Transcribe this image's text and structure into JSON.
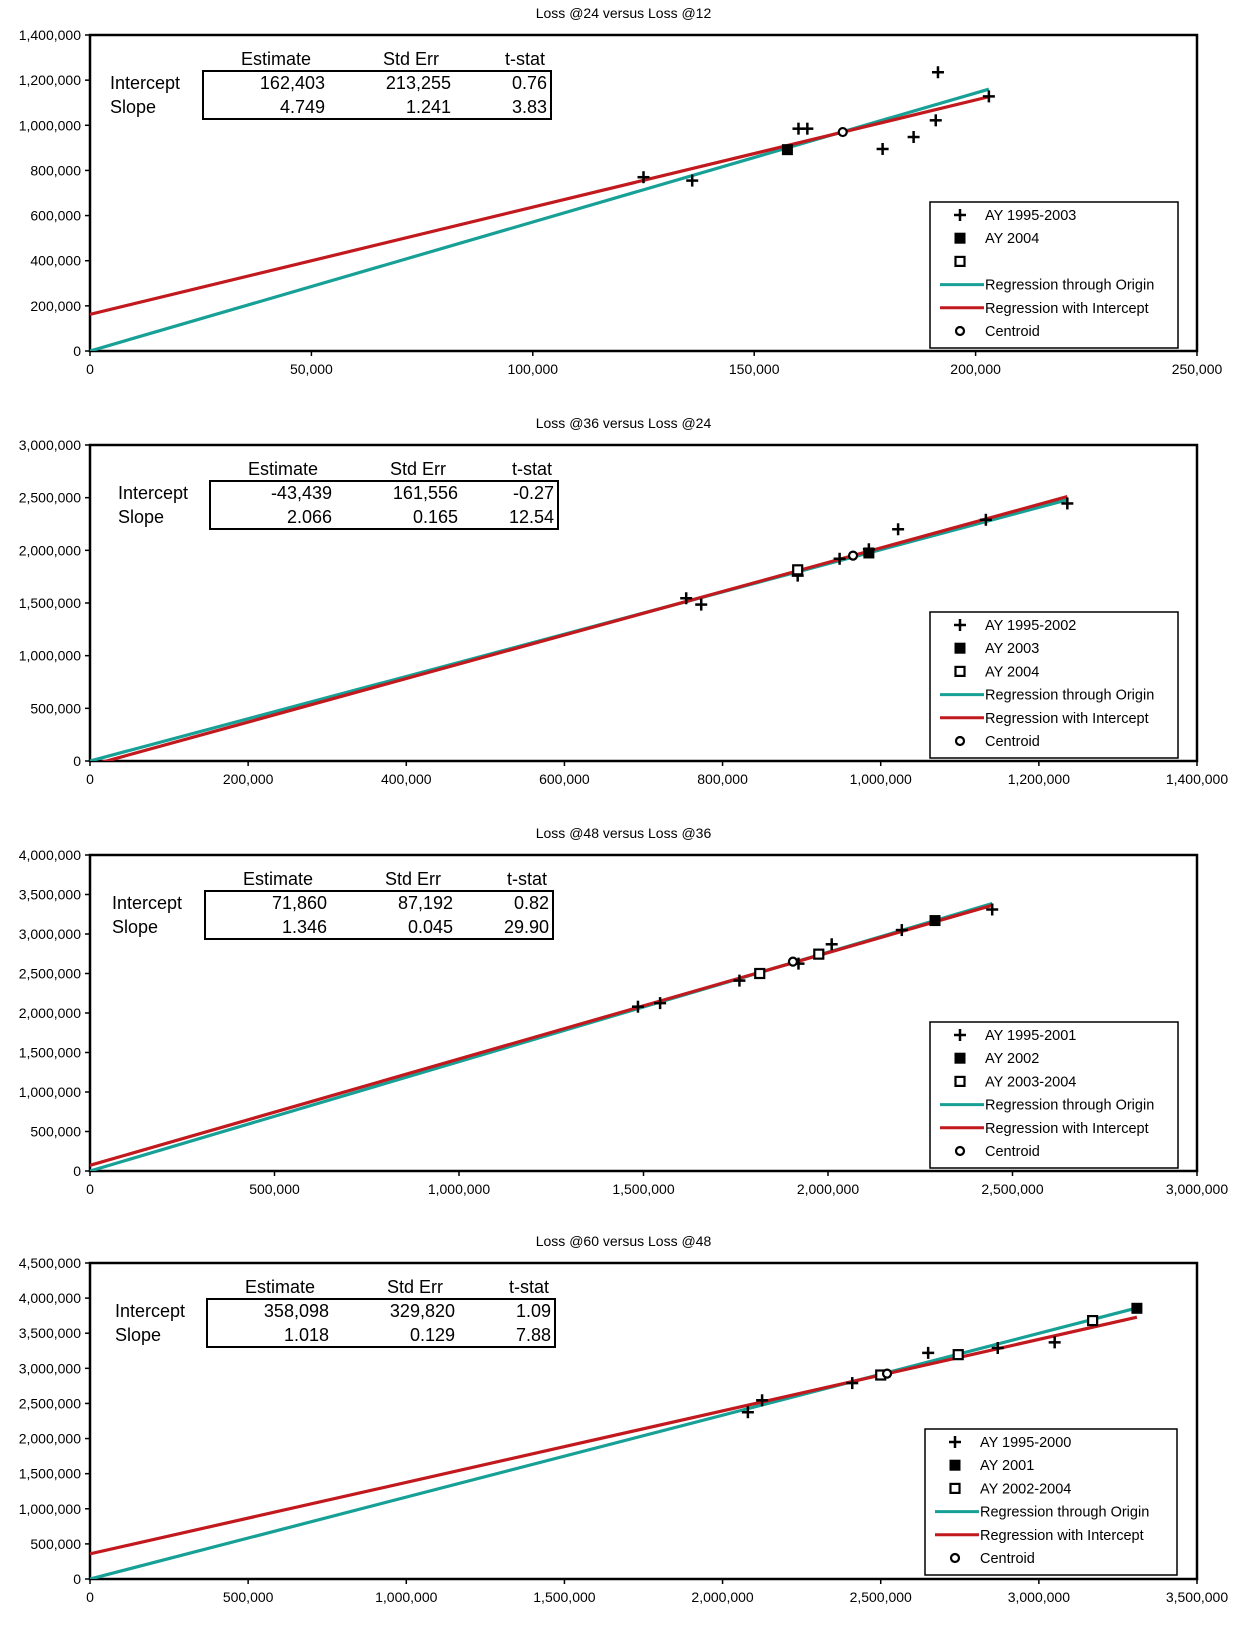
{
  "colors": {
    "origin_line": "#17a096",
    "intercept_line": "#c1191d",
    "ink": "#000000"
  },
  "chart_data": [
    {
      "type": "scatter",
      "title": "Loss @24 versus Loss @12",
      "xlabel": "",
      "ylabel": "",
      "xlim": [
        0,
        250000
      ],
      "ylim": [
        0,
        1400000
      ],
      "xticks": [
        0,
        50000,
        100000,
        150000,
        200000,
        250000
      ],
      "xtick_labels": [
        "0",
        "50,000",
        "100,000",
        "150,000",
        "200,000",
        "250,000"
      ],
      "yticks": [
        0,
        200000,
        400000,
        600000,
        800000,
        1000000,
        1200000,
        1400000
      ],
      "ytick_labels": [
        "0",
        "200,000",
        "400,000",
        "600,000",
        "800,000",
        "1,000,000",
        "1,200,000",
        "1,400,000"
      ],
      "table": {
        "headers": [
          "Estimate",
          "Std Err",
          "t-stat"
        ],
        "rows": [
          {
            "label": "Intercept",
            "values": [
              "162,403",
              "213,255",
              "0.76"
            ]
          },
          {
            "label": "Slope",
            "values": [
              "4.749",
              "1.241",
              "3.83"
            ]
          }
        ]
      },
      "legend": {
        "position": "bottom-right",
        "entries": [
          {
            "marker": "plus",
            "label": "AY 1995-2003"
          },
          {
            "marker": "filled-square",
            "label": "AY 2004"
          },
          {
            "marker": "open-square",
            "label": ""
          },
          {
            "marker": "teal-line",
            "label": "Regression through Origin"
          },
          {
            "marker": "red-line",
            "label": "Regression with Intercept"
          },
          {
            "marker": "circle",
            "label": "Centroid"
          }
        ]
      },
      "series": [
        {
          "name": "AY 1995-2003",
          "marker": "plus",
          "points": [
            [
              125000,
              770000
            ],
            [
              136000,
              755000
            ],
            [
              160000,
              985000
            ],
            [
              162000,
              985000
            ],
            [
              179000,
              895000
            ],
            [
              186000,
              948000
            ],
            [
              191000,
              1022000
            ],
            [
              191500,
              1235000
            ],
            [
              203000,
              1128000
            ]
          ]
        },
        {
          "name": "AY 2004",
          "marker": "filled-square",
          "points": [
            [
              157500,
              892000
            ]
          ]
        },
        {
          "name": "Centroid",
          "marker": "circle",
          "points": [
            [
              170000,
              970000
            ]
          ]
        }
      ],
      "lines": [
        {
          "name": "Regression through Origin",
          "color_key": "origin_line",
          "points": [
            [
              0,
              0
            ],
            [
              203000,
              1160000
            ]
          ]
        },
        {
          "name": "Regression with Intercept",
          "color_key": "intercept_line",
          "points": [
            [
              0,
              162403
            ],
            [
              203000,
              1126450
            ]
          ]
        }
      ]
    },
    {
      "type": "scatter",
      "title": "Loss @36 versus Loss @24",
      "xlabel": "",
      "ylabel": "",
      "xlim": [
        0,
        1400000
      ],
      "ylim": [
        0,
        3000000
      ],
      "xticks": [
        0,
        200000,
        400000,
        600000,
        800000,
        1000000,
        1200000,
        1400000
      ],
      "xtick_labels": [
        "0",
        "200,000",
        "400,000",
        "600,000",
        "800,000",
        "1,000,000",
        "1,200,000",
        "1,400,000"
      ],
      "yticks": [
        0,
        500000,
        1000000,
        1500000,
        2000000,
        2500000,
        3000000
      ],
      "ytick_labels": [
        "0",
        "500,000",
        "1,000,000",
        "1,500,000",
        "2,000,000",
        "2,500,000",
        "3,000,000"
      ],
      "table": {
        "headers": [
          "Estimate",
          "Std Err",
          "t-stat"
        ],
        "rows": [
          {
            "label": "Intercept",
            "values": [
              "-43,439",
              "161,556",
              "-0.27"
            ]
          },
          {
            "label": "Slope",
            "values": [
              "2.066",
              "0.165",
              "12.54"
            ]
          }
        ]
      },
      "legend": {
        "position": "bottom-right",
        "entries": [
          {
            "marker": "plus",
            "label": "AY 1995-2002"
          },
          {
            "marker": "filled-square",
            "label": "AY 2003"
          },
          {
            "marker": "open-square",
            "label": "AY 2004"
          },
          {
            "marker": "teal-line",
            "label": "Regression through Origin"
          },
          {
            "marker": "red-line",
            "label": "Regression with Intercept"
          },
          {
            "marker": "circle",
            "label": "Centroid"
          }
        ]
      },
      "series": [
        {
          "name": "AY 1995-2002",
          "marker": "plus",
          "points": [
            [
              754000,
              1545000
            ],
            [
              773000,
              1485000
            ],
            [
              895000,
              1760000
            ],
            [
              948000,
              1920000
            ],
            [
              985000,
              2010000
            ],
            [
              1022000,
              2200000
            ],
            [
              1133000,
              2290000
            ],
            [
              1236000,
              2445000
            ]
          ]
        },
        {
          "name": "AY 2003",
          "marker": "filled-square",
          "points": [
            [
              985000,
              1975000
            ]
          ]
        },
        {
          "name": "AY 2004",
          "marker": "open-square",
          "points": [
            [
              895000,
              1815000
            ]
          ]
        },
        {
          "name": "Centroid",
          "marker": "circle",
          "points": [
            [
              965000,
              1950000
            ]
          ]
        }
      ],
      "lines": [
        {
          "name": "Regression through Origin",
          "color_key": "origin_line",
          "points": [
            [
              0,
              0
            ],
            [
              1236000,
              2480000
            ]
          ]
        },
        {
          "name": "Regression with Intercept",
          "color_key": "intercept_line",
          "points": [
            [
              0,
              -43439
            ],
            [
              1236000,
              2510137
            ]
          ]
        }
      ]
    },
    {
      "type": "scatter",
      "title": "Loss @48 versus Loss @36",
      "xlabel": "",
      "ylabel": "",
      "xlim": [
        0,
        3000000
      ],
      "ylim": [
        0,
        4000000
      ],
      "xticks": [
        0,
        500000,
        1000000,
        1500000,
        2000000,
        2500000,
        3000000
      ],
      "xtick_labels": [
        "0",
        "500,000",
        "1,000,000",
        "1,500,000",
        "2,000,000",
        "2,500,000",
        "3,000,000"
      ],
      "yticks": [
        0,
        500000,
        1000000,
        1500000,
        2000000,
        2500000,
        3000000,
        3500000,
        4000000
      ],
      "ytick_labels": [
        "0",
        "500,000",
        "1,000,000",
        "1,500,000",
        "2,000,000",
        "2,500,000",
        "3,000,000",
        "3,500,000",
        "4,000,000"
      ],
      "table": {
        "headers": [
          "Estimate",
          "Std Err",
          "t-stat"
        ],
        "rows": [
          {
            "label": "Intercept",
            "values": [
              "71,860",
              "87,192",
              "0.82"
            ]
          },
          {
            "label": "Slope",
            "values": [
              "1.346",
              "0.045",
              "29.90"
            ]
          }
        ]
      },
      "legend": {
        "position": "bottom-right",
        "entries": [
          {
            "marker": "plus",
            "label": "AY 1995-2001"
          },
          {
            "marker": "filled-square",
            "label": "AY 2002"
          },
          {
            "marker": "open-square",
            "label": "AY 2003-2004"
          },
          {
            "marker": "teal-line",
            "label": "Regression through Origin"
          },
          {
            "marker": "red-line",
            "label": "Regression with Intercept"
          },
          {
            "marker": "circle",
            "label": "Centroid"
          }
        ]
      },
      "series": [
        {
          "name": "AY 1995-2001",
          "marker": "plus",
          "points": [
            [
              1485000,
              2080000
            ],
            [
              1545000,
              2125000
            ],
            [
              1760000,
              2410000
            ],
            [
              1920000,
              2625000
            ],
            [
              2010000,
              2870000
            ],
            [
              2200000,
              3050000
            ],
            [
              2445000,
              3310000
            ]
          ]
        },
        {
          "name": "AY 2002",
          "marker": "filled-square",
          "points": [
            [
              2290000,
              3170000
            ]
          ]
        },
        {
          "name": "AY 2003-2004",
          "marker": "open-square",
          "points": [
            [
              1815000,
              2500000
            ],
            [
              1975000,
              2745000
            ]
          ]
        },
        {
          "name": "Centroid",
          "marker": "circle",
          "points": [
            [
              1905000,
              2650000
            ]
          ]
        }
      ],
      "lines": [
        {
          "name": "Regression through Origin",
          "color_key": "origin_line",
          "points": [
            [
              0,
              0
            ],
            [
              2445000,
              3385000
            ]
          ]
        },
        {
          "name": "Regression with Intercept",
          "color_key": "intercept_line",
          "points": [
            [
              0,
              71860
            ],
            [
              2445000,
              3362830
            ]
          ]
        }
      ]
    },
    {
      "type": "scatter",
      "title": "Loss @60 versus Loss @48",
      "xlabel": "",
      "ylabel": "",
      "xlim": [
        0,
        3500000
      ],
      "ylim": [
        0,
        4500000
      ],
      "xticks": [
        0,
        500000,
        1000000,
        1500000,
        2000000,
        2500000,
        3000000,
        3500000
      ],
      "xtick_labels": [
        "0",
        "500,000",
        "1,000,000",
        "1,500,000",
        "2,000,000",
        "2,500,000",
        "3,000,000",
        "3,500,000"
      ],
      "yticks": [
        0,
        500000,
        1000000,
        1500000,
        2000000,
        2500000,
        3000000,
        3500000,
        4000000,
        4500000
      ],
      "ytick_labels": [
        "0",
        "500,000",
        "1,000,000",
        "1,500,000",
        "2,000,000",
        "2,500,000",
        "3,000,000",
        "3,500,000",
        "4,000,000",
        "4,500,000"
      ],
      "table": {
        "headers": [
          "Estimate",
          "Std Err",
          "t-stat"
        ],
        "rows": [
          {
            "label": "Intercept",
            "values": [
              "358,098",
              "329,820",
              "1.09"
            ]
          },
          {
            "label": "Slope",
            "values": [
              "1.018",
              "0.129",
              "7.88"
            ]
          }
        ]
      },
      "legend": {
        "position": "bottom-right",
        "entries": [
          {
            "marker": "plus",
            "label": "AY 1995-2000"
          },
          {
            "marker": "filled-square",
            "label": "AY 2001"
          },
          {
            "marker": "open-square",
            "label": "AY 2002-2004"
          },
          {
            "marker": "teal-line",
            "label": "Regression through Origin"
          },
          {
            "marker": "red-line",
            "label": "Regression with Intercept"
          },
          {
            "marker": "circle",
            "label": "Centroid"
          }
        ]
      },
      "series": [
        {
          "name": "AY 1995-2000",
          "marker": "plus",
          "points": [
            [
              2080000,
              2375000
            ],
            [
              2125000,
              2545000
            ],
            [
              2410000,
              2790000
            ],
            [
              2650000,
              3220000
            ],
            [
              2870000,
              3290000
            ],
            [
              3050000,
              3370000
            ]
          ]
        },
        {
          "name": "AY 2001",
          "marker": "filled-square",
          "points": [
            [
              3310000,
              3855000
            ]
          ]
        },
        {
          "name": "AY 2002-2004",
          "marker": "open-square",
          "points": [
            [
              2500000,
              2905000
            ],
            [
              2745000,
              3195000
            ],
            [
              3170000,
              3680000
            ]
          ]
        },
        {
          "name": "Centroid",
          "marker": "circle",
          "points": [
            [
              2520000,
              2925000
            ]
          ]
        }
      ],
      "lines": [
        {
          "name": "Regression through Origin",
          "color_key": "origin_line",
          "points": [
            [
              0,
              0
            ],
            [
              3310000,
              3860000
            ]
          ]
        },
        {
          "name": "Regression with Intercept",
          "color_key": "intercept_line",
          "points": [
            [
              0,
              358098
            ],
            [
              3310000,
              3727678
            ]
          ]
        }
      ]
    }
  ]
}
